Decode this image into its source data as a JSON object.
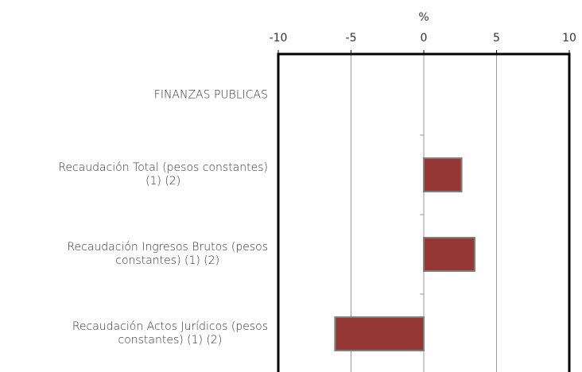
{
  "chart_data": {
    "type": "bar",
    "orientation": "horizontal",
    "axis_label": "%",
    "categories": [
      "FINANZAS PUBLICAS",
      "Recaudación Total (pesos constantes)\n(1) (2)",
      "Recaudación Ingresos Brutos (pesos\nconstantes)  (1) (2)",
      "Recaudación Actos Jurídicos (pesos\nconstantes)  (1) (2)"
    ],
    "values": [
      null,
      2.6,
      3.5,
      -6.1
    ],
    "color": "#953735",
    "xlim": [
      -10,
      10
    ],
    "xticks": [
      -10,
      -5,
      0,
      5,
      10
    ],
    "grid": true
  }
}
